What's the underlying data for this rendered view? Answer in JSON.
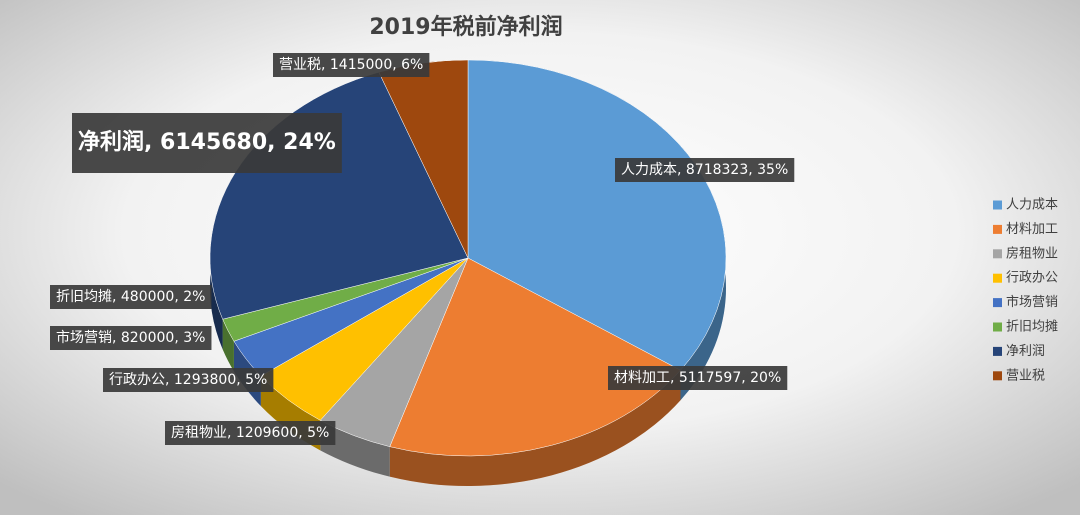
{
  "chart_data": {
    "type": "pie3d",
    "title": "2019年税前净利润",
    "categories": [
      "人力成本",
      "材料加工",
      "房租物业",
      "行政办公",
      "市场营销",
      "折旧均摊",
      "净利润",
      "营业税"
    ],
    "values": [
      8718323,
      5117597,
      1209600,
      1293800,
      820000,
      480000,
      6145680,
      1415000
    ],
    "value_labels": [
      "人力成本, 8718323, 35%",
      "材料加工, 5117597, 20%",
      "房租物业, 1209600, 5%",
      "行政办公, 1293800, 5%",
      "市场营销, 820000, 3%",
      "折旧均摊, 480000, 2%",
      "净利润, 6145680, 24%",
      "营业税, 1415000, 6%"
    ],
    "colors": [
      "#5b9bd5",
      "#ed7d31",
      "#a5a5a5",
      "#ffc000",
      "#4472c4",
      "#70ad47",
      "#264478",
      "#9e480e"
    ],
    "legend": "right"
  }
}
